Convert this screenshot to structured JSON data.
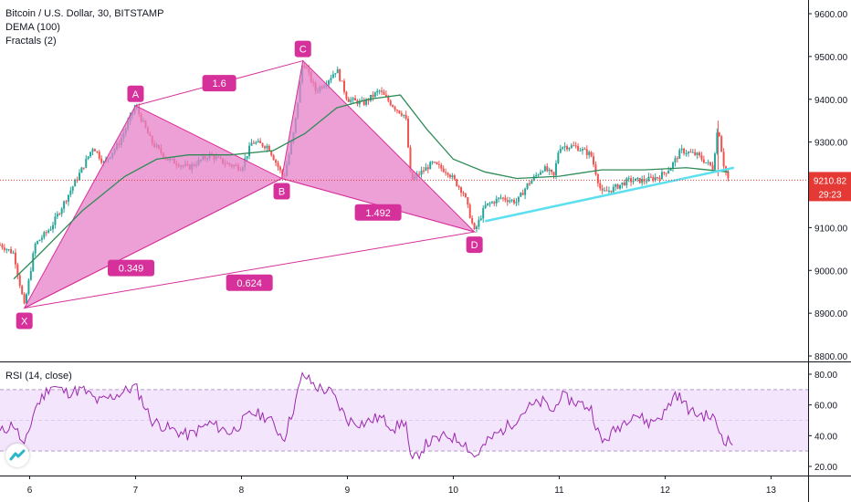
{
  "legend": {
    "symbol": "Bitcoin / U.S. Dollar, 30, BITSTAMP",
    "dema": "DEMA (100)",
    "fractals": "Fractals (2)",
    "rsi": "RSI (14, close)"
  },
  "price_tag": {
    "value": "9210.82",
    "countdown": "29:23"
  },
  "colors": {
    "pattern_fill": "#e580c8",
    "pattern_line": "#d6309b",
    "label_bg": "#d6309b",
    "dema_line": "#2e8b57",
    "trend_line": "#5ce0f0",
    "up_candle": "#26a69a",
    "down_candle": "#ef5350",
    "rsi_line": "#9c27b0",
    "rsi_band": "#f3e5fb",
    "last_price": "#e53935"
  },
  "chart_data": [
    {
      "type": "candlestick",
      "title": "Bitcoin / U.S. Dollar, 30, BITSTAMP",
      "x_ticks": [
        "6",
        "7",
        "8",
        "9",
        "10",
        "11",
        "12",
        "13"
      ],
      "y_ticks": [
        "9600.00",
        "9500.00",
        "9400.00",
        "9300.00",
        "9200.00",
        "9100.00",
        "9000.00",
        "8900.00",
        "8800.00"
      ],
      "ylim": [
        8790,
        9640
      ],
      "xlim": [
        5.72,
        13.35
      ],
      "price_path": [
        [
          5.72,
          9060
        ],
        [
          5.85,
          9040
        ],
        [
          5.95,
          8915
        ],
        [
          6.05,
          9060
        ],
        [
          6.2,
          9100
        ],
        [
          6.35,
          9170
        ],
        [
          6.5,
          9240
        ],
        [
          6.6,
          9290
        ],
        [
          6.7,
          9250
        ],
        [
          6.85,
          9300
        ],
        [
          7.0,
          9385
        ],
        [
          7.15,
          9300
        ],
        [
          7.3,
          9260
        ],
        [
          7.5,
          9240
        ],
        [
          7.7,
          9270
        ],
        [
          7.85,
          9250
        ],
        [
          8.0,
          9240
        ],
        [
          8.1,
          9300
        ],
        [
          8.25,
          9290
        ],
        [
          8.4,
          9215
        ],
        [
          8.5,
          9330
        ],
        [
          8.58,
          9490
        ],
        [
          8.7,
          9420
        ],
        [
          8.8,
          9440
        ],
        [
          8.9,
          9470
        ],
        [
          9.0,
          9400
        ],
        [
          9.15,
          9390
        ],
        [
          9.3,
          9420
        ],
        [
          9.45,
          9380
        ],
        [
          9.55,
          9360
        ],
        [
          9.6,
          9210
        ],
        [
          9.7,
          9230
        ],
        [
          9.8,
          9250
        ],
        [
          9.95,
          9230
        ],
        [
          10.1,
          9180
        ],
        [
          10.2,
          9090
        ],
        [
          10.3,
          9150
        ],
        [
          10.45,
          9170
        ],
        [
          10.6,
          9160
        ],
        [
          10.7,
          9200
        ],
        [
          10.85,
          9240
        ],
        [
          10.95,
          9220
        ],
        [
          11.0,
          9290
        ],
        [
          11.15,
          9290
        ],
        [
          11.3,
          9270
        ],
        [
          11.4,
          9180
        ],
        [
          11.5,
          9190
        ],
        [
          11.65,
          9210
        ],
        [
          11.8,
          9210
        ],
        [
          11.95,
          9220
        ],
        [
          12.05,
          9240
        ],
        [
          12.15,
          9280
        ],
        [
          12.3,
          9270
        ],
        [
          12.45,
          9240
        ],
        [
          12.5,
          9340
        ],
        [
          12.55,
          9250
        ],
        [
          12.6,
          9210
        ]
      ],
      "dema_path": [
        [
          5.85,
          8980
        ],
        [
          6.1,
          9040
        ],
        [
          6.5,
          9140
        ],
        [
          6.9,
          9220
        ],
        [
          7.2,
          9260
        ],
        [
          7.5,
          9270
        ],
        [
          7.9,
          9270
        ],
        [
          8.3,
          9280
        ],
        [
          8.6,
          9320
        ],
        [
          8.9,
          9380
        ],
        [
          9.2,
          9400
        ],
        [
          9.5,
          9410
        ],
        [
          9.75,
          9330
        ],
        [
          10.0,
          9260
        ],
        [
          10.3,
          9230
        ],
        [
          10.6,
          9215
        ],
        [
          11.0,
          9220
        ],
        [
          11.4,
          9235
        ],
        [
          11.8,
          9235
        ],
        [
          12.2,
          9240
        ],
        [
          12.6,
          9230
        ]
      ],
      "last_price": 9210.82,
      "harmonic_pattern": {
        "points": [
          {
            "name": "X",
            "x": 5.95,
            "y": 8912
          },
          {
            "name": "A",
            "x": 7.0,
            "y": 9385
          },
          {
            "name": "B",
            "x": 8.38,
            "y": 9215
          },
          {
            "name": "C",
            "x": 8.58,
            "y": 9490
          },
          {
            "name": "D",
            "x": 10.2,
            "y": 9090
          }
        ],
        "ratios": [
          {
            "label": "1.6",
            "between": "A-C"
          },
          {
            "label": "1.492",
            "between": "B-D"
          },
          {
            "label": "0.349",
            "between": "X-B"
          },
          {
            "label": "0.624",
            "between": "X-D"
          }
        ]
      },
      "trend_line": [
        [
          10.3,
          9115
        ],
        [
          12.65,
          9240
        ]
      ]
    },
    {
      "type": "line",
      "title": "RSI (14, close)",
      "y_ticks": [
        "80.00",
        "60.00",
        "40.00",
        "20.00"
      ],
      "ylim": [
        15,
        85
      ],
      "bands": [
        30,
        70
      ],
      "rsi_path": [
        [
          5.72,
          42
        ],
        [
          5.85,
          48
        ],
        [
          5.95,
          32
        ],
        [
          6.05,
          58
        ],
        [
          6.2,
          73
        ],
        [
          6.35,
          68
        ],
        [
          6.5,
          70
        ],
        [
          6.65,
          62
        ],
        [
          6.8,
          66
        ],
        [
          7.0,
          72
        ],
        [
          7.15,
          50
        ],
        [
          7.3,
          45
        ],
        [
          7.5,
          40
        ],
        [
          7.7,
          48
        ],
        [
          7.9,
          42
        ],
        [
          8.1,
          55
        ],
        [
          8.25,
          52
        ],
        [
          8.4,
          38
        ],
        [
          8.5,
          60
        ],
        [
          8.58,
          80
        ],
        [
          8.7,
          72
        ],
        [
          8.85,
          68
        ],
        [
          9.0,
          50
        ],
        [
          9.15,
          48
        ],
        [
          9.3,
          52
        ],
        [
          9.45,
          45
        ],
        [
          9.55,
          50
        ],
        [
          9.6,
          22
        ],
        [
          9.75,
          35
        ],
        [
          9.95,
          40
        ],
        [
          10.1,
          36
        ],
        [
          10.2,
          26
        ],
        [
          10.35,
          38
        ],
        [
          10.55,
          48
        ],
        [
          10.7,
          58
        ],
        [
          10.85,
          62
        ],
        [
          10.95,
          55
        ],
        [
          11.0,
          66
        ],
        [
          11.15,
          62
        ],
        [
          11.3,
          58
        ],
        [
          11.4,
          35
        ],
        [
          11.55,
          45
        ],
        [
          11.7,
          55
        ],
        [
          11.85,
          48
        ],
        [
          12.0,
          55
        ],
        [
          12.1,
          68
        ],
        [
          12.25,
          55
        ],
        [
          12.45,
          52
        ],
        [
          12.55,
          38
        ],
        [
          12.65,
          35
        ]
      ]
    }
  ]
}
